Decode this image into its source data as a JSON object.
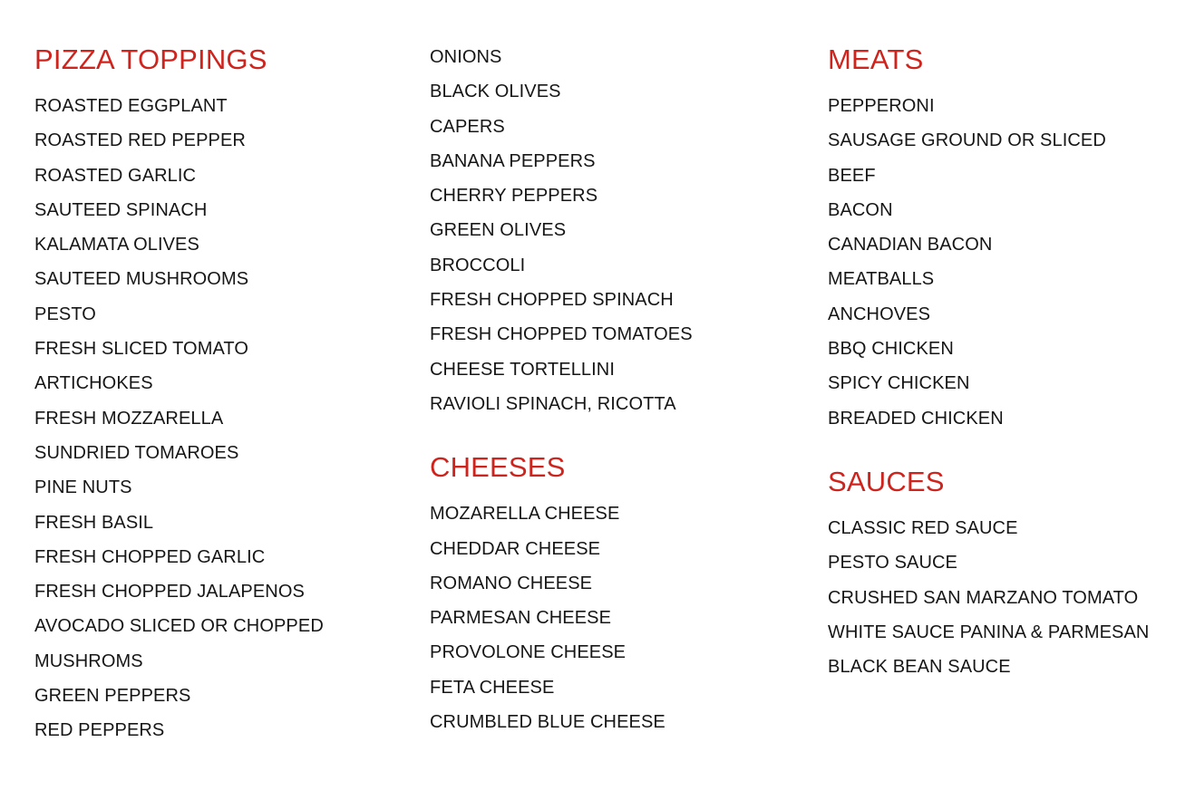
{
  "page": {
    "background_color": "#ffffff",
    "heading_color": "#ce241e",
    "text_color": "#161616"
  },
  "columns": [
    {
      "sections": [
        {
          "heading": "PIZZA TOPPINGS",
          "items": [
            "ROASTED EGGPLANT",
            "ROASTED RED PEPPER",
            "ROASTED GARLIC",
            "SAUTEED SPINACH",
            "KALAMATA OLIVES",
            "SAUTEED MUSHROOMS",
            "PESTO",
            "FRESH SLICED TOMATO",
            "ARTICHOKES",
            "FRESH MOZZARELLA",
            "SUNDRIED TOMAROES",
            "PINE NUTS",
            "FRESH BASIL",
            "FRESH CHOPPED GARLIC",
            "FRESH CHOPPED JALAPENOS",
            "AVOCADO SLICED OR CHOPPED",
            "MUSHROMS",
            "GREEN PEPPERS",
            "RED PEPPERS"
          ]
        }
      ]
    },
    {
      "sections": [
        {
          "heading": null,
          "items": [
            "ONIONS",
            "BLACK OLIVES",
            "CAPERS",
            "BANANA PEPPERS",
            "CHERRY PEPPERS",
            "GREEN OLIVES",
            "BROCCOLI",
            "FRESH CHOPPED SPINACH",
            "FRESH CHOPPED TOMATOES",
            "CHEESE TORTELLINI",
            "RAVIOLI SPINACH, RICOTTA"
          ]
        },
        {
          "heading": "CHEESES",
          "items": [
            "MOZARELLA CHEESE",
            "CHEDDAR CHEESE",
            "ROMANO CHEESE",
            "PARMESAN CHEESE",
            "PROVOLONE CHEESE",
            "FETA CHEESE",
            "CRUMBLED BLUE CHEESE"
          ]
        }
      ]
    },
    {
      "sections": [
        {
          "heading": "MEATS",
          "items": [
            "PEPPERONI",
            "SAUSAGE GROUND OR SLICED",
            "BEEF",
            "BACON",
            "CANADIAN BACON",
            "MEATBALLS",
            "ANCHOVES",
            "BBQ CHICKEN",
            "SPICY CHICKEN",
            "BREADED CHICKEN"
          ]
        },
        {
          "heading": "SAUCES",
          "items": [
            "CLASSIC RED SAUCE",
            "PESTO SAUCE",
            "CRUSHED SAN MARZANO TOMATO",
            "WHITE SAUCE PANINA & PARMESAN",
            "BLACK BEAN SAUCE"
          ]
        }
      ]
    }
  ]
}
